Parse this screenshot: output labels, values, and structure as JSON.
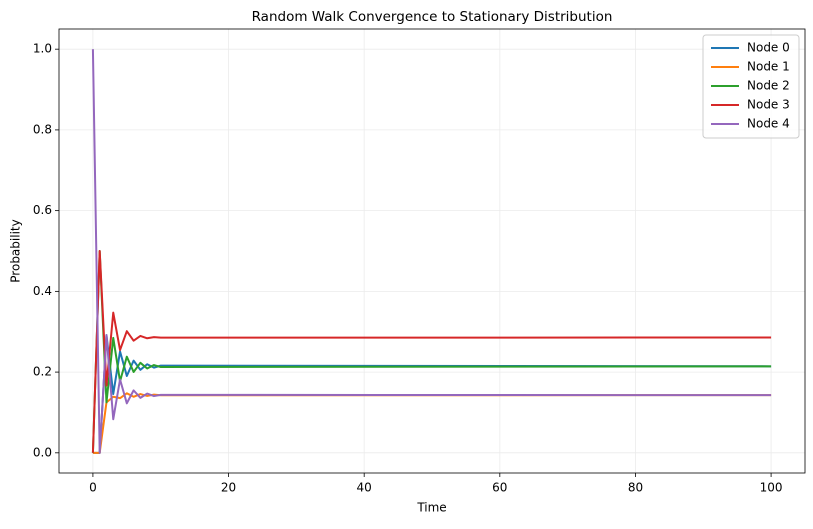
{
  "chart_data": {
    "type": "line",
    "title": "Random Walk Convergence to Stationary Distribution",
    "x_label": "Time",
    "y_label": "Probability",
    "x": [
      0,
      1,
      2,
      3,
      4,
      5,
      6,
      7,
      8,
      9,
      10,
      100
    ],
    "series": [
      {
        "name": "Node 0",
        "color": "#1f77b4",
        "values": [
          0,
          0,
          0.2917,
          0.1458,
          0.2512,
          0.1904,
          0.2284,
          0.2056,
          0.2195,
          0.2111,
          0.216,
          0.2143
        ]
      },
      {
        "name": "Node 1",
        "color": "#ff7f0e",
        "values": [
          0,
          0,
          0.125,
          0.1389,
          0.1354,
          0.1474,
          0.1388,
          0.1456,
          0.1409,
          0.1441,
          0.1426,
          0.1429
        ]
      },
      {
        "name": "Node 2",
        "color": "#2ca02c",
        "values": [
          0,
          0.5,
          0.125,
          0.2847,
          0.1771,
          0.2382,
          0.2002,
          0.223,
          0.209,
          0.2175,
          0.2125,
          0.2143
        ]
      },
      {
        "name": "Node 3",
        "color": "#d62728",
        "values": [
          0,
          0.5,
          0.1667,
          0.3472,
          0.2546,
          0.3013,
          0.2779,
          0.2896,
          0.2838,
          0.2866,
          0.2853,
          0.2857
        ]
      },
      {
        "name": "Node 4",
        "color": "#9467bd",
        "values": [
          1,
          0,
          0.2917,
          0.0833,
          0.1817,
          0.1227,
          0.1547,
          0.1362,
          0.1467,
          0.1406,
          0.1436,
          0.1429
        ]
      }
    ],
    "xlim": [
      -5,
      105
    ],
    "ylim": [
      -0.05,
      1.05
    ],
    "xticks": [
      0,
      20,
      40,
      60,
      80,
      100
    ],
    "yticks": [
      {
        "value": 0,
        "label": "0.0"
      },
      {
        "value": 0.2,
        "label": "0.2"
      },
      {
        "value": 0.4,
        "label": "0.4"
      },
      {
        "value": 0.6,
        "label": "0.6"
      },
      {
        "value": 0.8,
        "label": "0.8"
      },
      {
        "value": 1,
        "label": "1.0"
      }
    ],
    "grid": true,
    "legend": "upper right"
  }
}
